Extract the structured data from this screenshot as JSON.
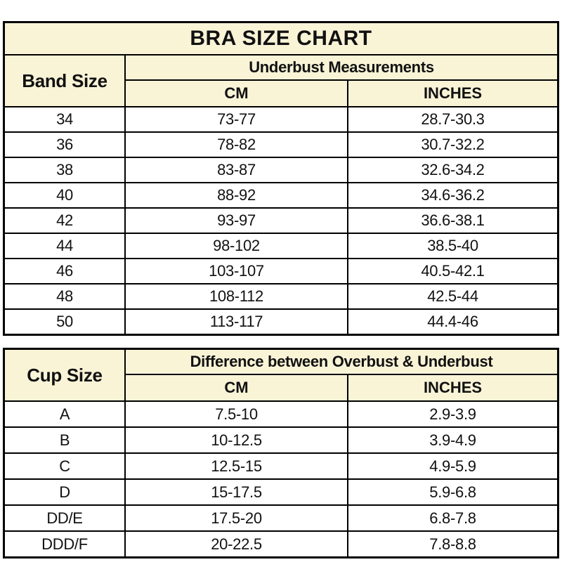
{
  "colors": {
    "header_bg": "#faf4d7",
    "row_bg": "#ffffff",
    "border": "#000000",
    "text": "#111111"
  },
  "chart_data": [
    {
      "type": "table",
      "title": "BRA SIZE CHART",
      "corner_header": "Band Size",
      "group_header": "Underbust Measurements",
      "columns": [
        "CM",
        "INCHES"
      ],
      "rows": [
        [
          "34",
          "73-77",
          "28.7-30.3"
        ],
        [
          "36",
          "78-82",
          "30.7-32.2"
        ],
        [
          "38",
          "83-87",
          "32.6-34.2"
        ],
        [
          "40",
          "88-92",
          "34.6-36.2"
        ],
        [
          "42",
          "93-97",
          "36.6-38.1"
        ],
        [
          "44",
          "98-102",
          "38.5-40"
        ],
        [
          "46",
          "103-107",
          "40.5-42.1"
        ],
        [
          "48",
          "108-112",
          "42.5-44"
        ],
        [
          "50",
          "113-117",
          "44.4-46"
        ]
      ]
    },
    {
      "type": "table",
      "corner_header": "Cup Size",
      "group_header": "Difference between Overbust & Underbust",
      "columns": [
        "CM",
        "INCHES"
      ],
      "rows": [
        [
          "A",
          "7.5-10",
          "2.9-3.9"
        ],
        [
          "B",
          "10-12.5",
          "3.9-4.9"
        ],
        [
          "C",
          "12.5-15",
          "4.9-5.9"
        ],
        [
          "D",
          "15-17.5",
          "5.9-6.8"
        ],
        [
          "DD/E",
          "17.5-20",
          "6.8-7.8"
        ],
        [
          "DDD/F",
          "20-22.5",
          "7.8-8.8"
        ]
      ]
    }
  ]
}
